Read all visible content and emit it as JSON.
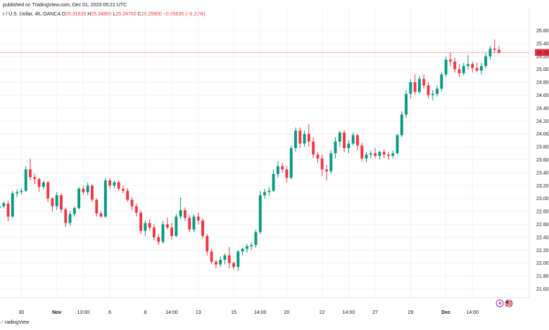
{
  "header": {
    "published": "published on TradingView.com, Dec 01, 2023 05:21 UTC",
    "symbol": "r / U.S. Dollar, 4h, OANDA",
    "o_label": "O",
    "o_val": "25.31635",
    "h_label": "H",
    "h_val": "25.34800",
    "l_label": "L",
    "l_val": "25.24700",
    "c_label": "C",
    "c_val": "25.25900",
    "change": "−0.05635 (−0.22%)"
  },
  "footer": {
    "brand": "radingView"
  },
  "price_badge": "25.25",
  "colors": {
    "up": "#089981",
    "down": "#f23645",
    "grid": "#f0f3fa",
    "axis": "#131722",
    "price_line": "#f23645"
  },
  "icons": {
    "event1": "lightning-icon",
    "event2": "us-flag-icon"
  },
  "chart_data": {
    "type": "candlestick",
    "ylim": [
      21.6,
      25.7
    ],
    "grid": true,
    "y_ticks": [
      21.6,
      21.8,
      22.0,
      22.2,
      22.4,
      22.6,
      22.8,
      23.0,
      23.2,
      23.4,
      23.6,
      23.8,
      24.0,
      24.2,
      24.4,
      24.6,
      24.8,
      25.0,
      25.2,
      25.4,
      25.6
    ],
    "y_tick_labels": [
      "21.60",
      "21.80",
      "22.00",
      "22.20",
      "22.40",
      "22.60",
      "22.80",
      "23.00",
      "23.20",
      "23.40",
      "23.60",
      "23.80",
      "24.00",
      "24.20",
      "24.40",
      "24.60",
      "24.80",
      "25.00",
      "25.20",
      "25.40",
      "25.60"
    ],
    "x_tick_labels": [
      {
        "label": "30",
        "at": 5,
        "bold": false
      },
      {
        "label": "Nov",
        "at": 13,
        "bold": true
      },
      {
        "label": "13:00",
        "at": 19,
        "bold": false
      },
      {
        "label": "6",
        "at": 25,
        "bold": false
      },
      {
        "label": "8",
        "at": 33,
        "bold": false
      },
      {
        "label": "14:00",
        "at": 39,
        "bold": false
      },
      {
        "label": "13",
        "at": 45,
        "bold": false
      },
      {
        "label": "15",
        "at": 53,
        "bold": false
      },
      {
        "label": "14:00",
        "at": 59,
        "bold": false
      },
      {
        "label": "20",
        "at": 65,
        "bold": false
      },
      {
        "label": "22",
        "at": 73,
        "bold": false
      },
      {
        "label": "14:00",
        "at": 79,
        "bold": false
      },
      {
        "label": "27",
        "at": 85,
        "bold": false
      },
      {
        "label": "29",
        "at": 93,
        "bold": false
      },
      {
        "label": "Dec",
        "at": 101,
        "bold": true
      },
      {
        "label": "14:00",
        "at": 107,
        "bold": false
      }
    ],
    "candles": [
      [
        22.85,
        22.92,
        22.82,
        22.88
      ],
      [
        22.88,
        22.95,
        22.85,
        22.93
      ],
      [
        22.92,
        22.97,
        22.65,
        22.72
      ],
      [
        22.72,
        23.12,
        22.7,
        23.08
      ],
      [
        23.08,
        23.14,
        23.02,
        23.1
      ],
      [
        23.1,
        23.16,
        23.06,
        23.12
      ],
      [
        23.12,
        23.5,
        23.1,
        23.45
      ],
      [
        23.45,
        23.62,
        23.28,
        23.33
      ],
      [
        23.33,
        23.38,
        23.22,
        23.3
      ],
      [
        23.3,
        23.32,
        23.1,
        23.18
      ],
      [
        23.18,
        23.28,
        23.14,
        23.25
      ],
      [
        23.25,
        23.27,
        22.95,
        23.0
      ],
      [
        23.0,
        23.02,
        22.8,
        22.88
      ],
      [
        22.88,
        23.1,
        22.82,
        23.05
      ],
      [
        23.05,
        23.08,
        22.78,
        22.83
      ],
      [
        22.83,
        22.86,
        22.56,
        22.62
      ],
      [
        22.62,
        22.8,
        22.58,
        22.76
      ],
      [
        22.76,
        22.88,
        22.72,
        22.85
      ],
      [
        22.85,
        23.18,
        22.83,
        23.15
      ],
      [
        23.15,
        23.2,
        23.06,
        23.1
      ],
      [
        23.1,
        23.25,
        23.05,
        23.2
      ],
      [
        23.2,
        23.22,
        22.95,
        22.98
      ],
      [
        22.98,
        23.0,
        22.72,
        22.77
      ],
      [
        22.77,
        22.8,
        22.7,
        22.72
      ],
      [
        22.72,
        23.32,
        22.7,
        23.28
      ],
      [
        23.28,
        23.32,
        23.15,
        23.2
      ],
      [
        23.2,
        23.28,
        23.16,
        23.25
      ],
      [
        23.25,
        23.28,
        23.12,
        23.15
      ],
      [
        23.15,
        23.2,
        23.08,
        23.12
      ],
      [
        23.12,
        23.16,
        22.95,
        22.98
      ],
      [
        22.98,
        23.02,
        22.82,
        22.88
      ],
      [
        22.88,
        22.92,
        22.72,
        22.78
      ],
      [
        22.78,
        22.82,
        22.45,
        22.5
      ],
      [
        22.5,
        22.66,
        22.42,
        22.62
      ],
      [
        22.62,
        22.68,
        22.5,
        22.55
      ],
      [
        22.55,
        22.6,
        22.35,
        22.4
      ],
      [
        22.4,
        22.45,
        22.28,
        22.33
      ],
      [
        22.33,
        22.65,
        22.3,
        22.6
      ],
      [
        22.6,
        22.7,
        22.52,
        22.55
      ],
      [
        22.55,
        22.62,
        22.36,
        22.42
      ],
      [
        22.42,
        22.76,
        22.4,
        22.72
      ],
      [
        22.72,
        23.02,
        22.68,
        22.82
      ],
      [
        22.82,
        22.86,
        22.65,
        22.7
      ],
      [
        22.7,
        22.74,
        22.48,
        22.52
      ],
      [
        22.52,
        22.75,
        22.48,
        22.72
      ],
      [
        22.72,
        22.78,
        22.6,
        22.66
      ],
      [
        22.66,
        22.7,
        22.38,
        22.42
      ],
      [
        22.42,
        22.45,
        22.12,
        22.18
      ],
      [
        22.18,
        22.22,
        21.98,
        22.02
      ],
      [
        22.02,
        22.05,
        21.92,
        21.98
      ],
      [
        21.98,
        22.1,
        21.94,
        22.05
      ],
      [
        22.05,
        22.15,
        21.98,
        22.12
      ],
      [
        22.12,
        22.25,
        21.92,
        22.0
      ],
      [
        22.0,
        22.02,
        21.9,
        21.94
      ],
      [
        21.94,
        22.2,
        21.88,
        22.18
      ],
      [
        22.18,
        22.24,
        22.12,
        22.22
      ],
      [
        22.22,
        22.3,
        22.16,
        22.26
      ],
      [
        22.26,
        22.32,
        22.2,
        22.28
      ],
      [
        22.28,
        22.52,
        22.24,
        22.48
      ],
      [
        22.48,
        23.12,
        22.45,
        23.05
      ],
      [
        23.05,
        23.15,
        23.0,
        23.1
      ],
      [
        23.1,
        23.18,
        23.04,
        23.12
      ],
      [
        23.12,
        23.45,
        23.1,
        23.38
      ],
      [
        23.38,
        23.58,
        23.32,
        23.5
      ],
      [
        23.5,
        23.55,
        23.4,
        23.45
      ],
      [
        23.45,
        23.5,
        23.25,
        23.32
      ],
      [
        23.32,
        23.82,
        23.3,
        23.78
      ],
      [
        23.78,
        24.1,
        23.72,
        24.05
      ],
      [
        24.05,
        24.1,
        23.78,
        23.85
      ],
      [
        23.85,
        24.05,
        23.8,
        24.0
      ],
      [
        24.0,
        24.15,
        23.8,
        23.88
      ],
      [
        23.88,
        23.95,
        23.62,
        23.68
      ],
      [
        23.68,
        23.72,
        23.55,
        23.62
      ],
      [
        23.62,
        23.68,
        23.35,
        23.45
      ],
      [
        23.45,
        23.52,
        23.28,
        23.42
      ],
      [
        23.42,
        23.75,
        23.38,
        23.7
      ],
      [
        23.7,
        23.95,
        23.62,
        23.88
      ],
      [
        23.88,
        24.05,
        23.8,
        24.02
      ],
      [
        24.02,
        24.06,
        23.72,
        23.78
      ],
      [
        23.78,
        23.9,
        23.7,
        23.85
      ],
      [
        23.85,
        24.02,
        23.82,
        23.98
      ],
      [
        23.98,
        24.0,
        23.75,
        23.82
      ],
      [
        23.82,
        23.86,
        23.58,
        23.62
      ],
      [
        23.62,
        23.72,
        23.56,
        23.68
      ],
      [
        23.68,
        23.74,
        23.62,
        23.7
      ],
      [
        23.7,
        23.78,
        23.62,
        23.66
      ],
      [
        23.66,
        23.74,
        23.6,
        23.72
      ],
      [
        23.72,
        23.76,
        23.62,
        23.68
      ],
      [
        23.68,
        23.72,
        23.6,
        23.66
      ],
      [
        23.66,
        23.74,
        23.62,
        23.7
      ],
      [
        23.7,
        24.0,
        23.68,
        23.98
      ],
      [
        23.98,
        24.35,
        23.95,
        24.3
      ],
      [
        24.3,
        24.68,
        24.25,
        24.62
      ],
      [
        24.62,
        24.85,
        24.55,
        24.8
      ],
      [
        24.8,
        24.92,
        24.6,
        24.65
      ],
      [
        24.65,
        24.9,
        24.62,
        24.85
      ],
      [
        24.85,
        24.92,
        24.7,
        24.75
      ],
      [
        24.75,
        24.8,
        24.55,
        24.6
      ],
      [
        24.6,
        24.68,
        24.52,
        24.62
      ],
      [
        24.62,
        24.75,
        24.58,
        24.7
      ],
      [
        24.7,
        24.96,
        24.66,
        24.92
      ],
      [
        24.92,
        25.2,
        24.88,
        25.15
      ],
      [
        25.15,
        25.26,
        25.05,
        25.12
      ],
      [
        25.12,
        25.18,
        24.95,
        25.0
      ],
      [
        25.0,
        25.08,
        24.88,
        24.94
      ],
      [
        24.94,
        25.1,
        24.9,
        25.05
      ],
      [
        25.05,
        25.22,
        25.0,
        25.08
      ],
      [
        25.08,
        25.12,
        24.95,
        25.02
      ],
      [
        25.02,
        25.1,
        24.96,
        24.98
      ],
      [
        24.98,
        25.1,
        24.92,
        25.05
      ],
      [
        25.05,
        25.25,
        25.02,
        25.2
      ],
      [
        25.2,
        25.36,
        25.15,
        25.32
      ],
      [
        25.32,
        25.46,
        25.25,
        25.3
      ],
      [
        25.3,
        25.36,
        25.24,
        25.26
      ]
    ]
  }
}
